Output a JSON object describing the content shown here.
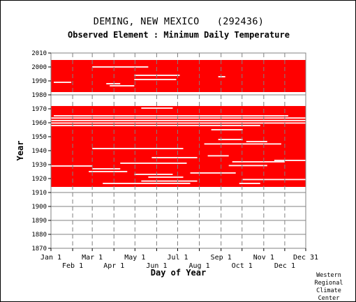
{
  "title": "DEMING, NEW MEXICO   (292436)",
  "subtitle": "Observed Element : Minimum Daily Temperature",
  "credit": [
    "Western",
    "Regional",
    "Climate",
    "Center"
  ],
  "colors": {
    "data": "#ff0000",
    "grid": "#808080",
    "background": "#ffffff",
    "frame": "#000000"
  },
  "chart_data": {
    "type": "heatmap",
    "xlabel": "Day of Year",
    "ylabel": "Year",
    "xlim": [
      1,
      365
    ],
    "ylim": [
      1870,
      2010
    ],
    "x_ticks_top_row": [
      {
        "label": "Jan 1",
        "day": 1
      },
      {
        "label": "Mar 1",
        "day": 60
      },
      {
        "label": "May 1",
        "day": 121
      },
      {
        "label": "Jul 1",
        "day": 182
      },
      {
        "label": "Sep 1",
        "day": 244
      },
      {
        "label": "Nov 1",
        "day": 305
      },
      {
        "label": "Dec 31",
        "day": 365
      }
    ],
    "x_ticks_bottom_row": [
      {
        "label": "Feb 1",
        "day": 32
      },
      {
        "label": "Apr 1",
        "day": 91
      },
      {
        "label": "Jun 1",
        "day": 152
      },
      {
        "label": "Aug 1",
        "day": 213
      },
      {
        "label": "Oct 1",
        "day": 274
      },
      {
        "label": "Dec 1",
        "day": 335
      }
    ],
    "y_ticks": [
      1870,
      1880,
      1890,
      1900,
      1910,
      1920,
      1930,
      1940,
      1950,
      1960,
      1970,
      1980,
      1990,
      2000,
      2010
    ],
    "grid": true,
    "data_blocks": [
      {
        "year_from": 1914,
        "year_to": 1972,
        "day_from": 1,
        "day_to": 365
      },
      {
        "year_from": 1982,
        "year_to": 2005,
        "day_from": 1,
        "day_to": 365
      }
    ],
    "missing_segments": [
      {
        "year": 1919.3,
        "day_from": 275,
        "day_to": 365
      },
      {
        "year": 1918.2,
        "day_from": 130,
        "day_to": 210
      },
      {
        "year": 1916.5,
        "day_from": 75,
        "day_to": 200
      },
      {
        "year": 1916.5,
        "day_from": 270,
        "day_to": 300
      },
      {
        "year": 1921.0,
        "day_from": 140,
        "day_to": 190
      },
      {
        "year": 1923.0,
        "day_from": 120,
        "day_to": 175
      },
      {
        "year": 1924.0,
        "day_from": 200,
        "day_to": 265
      },
      {
        "year": 1925.0,
        "day_from": 55,
        "day_to": 110
      },
      {
        "year": 1927.0,
        "day_from": 60,
        "day_to": 100
      },
      {
        "year": 1929.0,
        "day_from": 1,
        "day_to": 60
      },
      {
        "year": 1929.3,
        "day_from": 255,
        "day_to": 310
      },
      {
        "year": 1931.0,
        "day_from": 100,
        "day_to": 195
      },
      {
        "year": 1932.0,
        "day_from": 260,
        "day_to": 335
      },
      {
        "year": 1933.0,
        "day_from": 320,
        "day_to": 365
      },
      {
        "year": 1935.0,
        "day_from": 145,
        "day_to": 210
      },
      {
        "year": 1936.3,
        "day_from": 225,
        "day_to": 255
      },
      {
        "year": 1941.5,
        "day_from": 60,
        "day_to": 190
      },
      {
        "year": 1944.8,
        "day_from": 220,
        "day_to": 330
      },
      {
        "year": 1946.5,
        "day_from": 280,
        "day_to": 310
      },
      {
        "year": 1948.0,
        "day_from": 240,
        "day_to": 275
      },
      {
        "year": 1955.0,
        "day_from": 230,
        "day_to": 275
      },
      {
        "year": 1958.0,
        "day_from": 1,
        "day_to": 300
      },
      {
        "year": 1959.8,
        "day_from": 1,
        "day_to": 365
      },
      {
        "year": 1961.6,
        "day_from": 1,
        "day_to": 365
      },
      {
        "year": 1963.4,
        "day_from": 1,
        "day_to": 365
      },
      {
        "year": 1965.0,
        "day_from": 5,
        "day_to": 340
      },
      {
        "year": 1970.5,
        "day_from": 130,
        "day_to": 175
      },
      {
        "year": 1991.0,
        "day_from": 120,
        "day_to": 180
      },
      {
        "year": 1994.0,
        "day_from": 120,
        "day_to": 185
      },
      {
        "year": 1993.0,
        "day_from": 240,
        "day_to": 250
      },
      {
        "year": 1989.0,
        "day_from": 5,
        "day_to": 30
      },
      {
        "year": 1988.0,
        "day_from": 80,
        "day_to": 100
      },
      {
        "year": 1986.5,
        "day_from": 85,
        "day_to": 120
      },
      {
        "year": 2000.0,
        "day_from": 60,
        "day_to": 140
      }
    ]
  }
}
